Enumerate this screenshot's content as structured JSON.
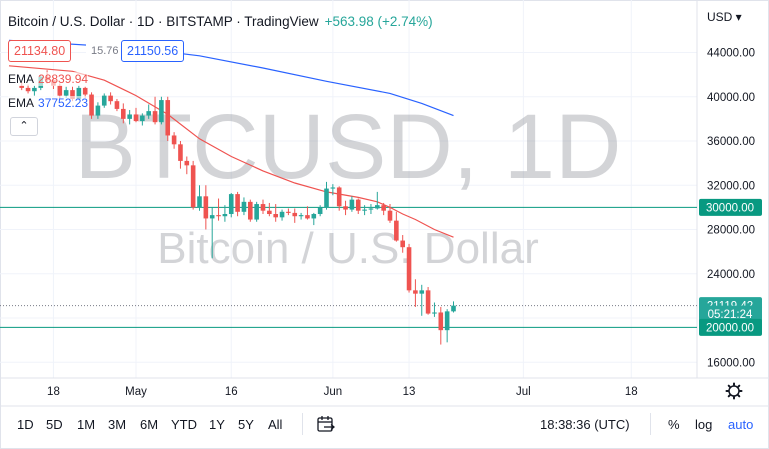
{
  "header": {
    "title": "Bitcoin / U.S. Dollar · 1D · BITSTAMP · TradingView",
    "change": "+563.98 (+2.74%)"
  },
  "legend": {
    "open_value": "21134.80",
    "volume_value": "15.76",
    "close_value": "21150.56",
    "ema1_label": "EMA",
    "ema1_value": "28839.94",
    "ema2_label": "EMA",
    "ema2_value": "37752.23",
    "collapse_glyph": "⌃"
  },
  "watermark": {
    "symbol": "BTCUSD, 1D",
    "name": "Bitcoin / U.S. Dollar"
  },
  "currency_menu": "USD ▾",
  "price_axis": {
    "ticks": [
      "44000.00",
      "40000.00",
      "36000.00",
      "32000.00",
      "28000.00",
      "24000.00",
      "20000.00",
      "16000.00"
    ],
    "tick_values": [
      44000,
      40000,
      36000,
      32000,
      28000,
      24000,
      20000,
      16000
    ],
    "labels": [
      {
        "text": "30000.00",
        "value": 30000,
        "color": "#089981"
      },
      {
        "text": "21119.42",
        "value": 21119.42,
        "color": "#26a69a"
      },
      {
        "text": "05:21:24",
        "value": 20350,
        "color": "#26a69a"
      },
      {
        "text": "20000.00",
        "value": 19150,
        "color": "#089981"
      }
    ]
  },
  "time_axis": {
    "ticks": [
      {
        "text": "18",
        "day": -13
      },
      {
        "text": "May",
        "day": 0
      },
      {
        "text": "16",
        "day": 15
      },
      {
        "text": "Jun",
        "day": 31
      },
      {
        "text": "13",
        "day": 43
      },
      {
        "text": "Jul",
        "day": 61
      },
      {
        "text": "18",
        "day": 78
      }
    ]
  },
  "colors": {
    "up": "#26a69a",
    "down": "#ef5350",
    "ema_fast": "#ef5350",
    "ema_slow": "#2962ff",
    "hline": "#089981",
    "grid": "#f0f3fa",
    "watermark": "rgba(120,123,134,0.35)"
  },
  "chart_data": {
    "type": "candlestick",
    "ylim": [
      14000,
      46500
    ],
    "x_unit": "days since 1 May",
    "horizontal_lines": [
      30000,
      20000
    ],
    "last_price": 21119.42,
    "candles": [
      {
        "d": -18,
        "o": 41000,
        "h": 41300,
        "l": 40600,
        "c": 40800
      },
      {
        "d": -17,
        "o": 40800,
        "h": 41100,
        "l": 40300,
        "c": 40500
      },
      {
        "d": -16,
        "o": 40500,
        "h": 41000,
        "l": 40100,
        "c": 40800
      },
      {
        "d": -15,
        "o": 40800,
        "h": 42000,
        "l": 40600,
        "c": 41800
      },
      {
        "d": -14,
        "o": 41800,
        "h": 42400,
        "l": 41200,
        "c": 41500
      },
      {
        "d": -13,
        "o": 41500,
        "h": 41800,
        "l": 40700,
        "c": 41000
      },
      {
        "d": -12,
        "o": 41000,
        "h": 41200,
        "l": 39800,
        "c": 40100
      },
      {
        "d": -11,
        "o": 40100,
        "h": 40900,
        "l": 39900,
        "c": 40600
      },
      {
        "d": -10,
        "o": 40600,
        "h": 40900,
        "l": 39600,
        "c": 39800
      },
      {
        "d": -9,
        "o": 39800,
        "h": 41000,
        "l": 39700,
        "c": 40800
      },
      {
        "d": -8,
        "o": 40800,
        "h": 40900,
        "l": 39900,
        "c": 40200
      },
      {
        "d": -7,
        "o": 40200,
        "h": 40400,
        "l": 38000,
        "c": 38300
      },
      {
        "d": -6,
        "o": 38300,
        "h": 39500,
        "l": 38000,
        "c": 39200
      },
      {
        "d": -5,
        "o": 39200,
        "h": 40300,
        "l": 39000,
        "c": 40100
      },
      {
        "d": -4,
        "o": 40100,
        "h": 40400,
        "l": 39300,
        "c": 39600
      },
      {
        "d": -3,
        "o": 39600,
        "h": 39800,
        "l": 38700,
        "c": 38900
      },
      {
        "d": -2,
        "o": 38900,
        "h": 39400,
        "l": 37600,
        "c": 38000
      },
      {
        "d": -1,
        "o": 38000,
        "h": 38800,
        "l": 37500,
        "c": 38400
      },
      {
        "d": 0,
        "o": 38400,
        "h": 39000,
        "l": 37700,
        "c": 37800
      },
      {
        "d": 1,
        "o": 37800,
        "h": 38500,
        "l": 37400,
        "c": 38300
      },
      {
        "d": 2,
        "o": 38300,
        "h": 39300,
        "l": 38000,
        "c": 38700
      },
      {
        "d": 3,
        "o": 38700,
        "h": 40000,
        "l": 37500,
        "c": 37700
      },
      {
        "d": 4,
        "o": 37700,
        "h": 40000,
        "l": 37500,
        "c": 39700
      },
      {
        "d": 5,
        "o": 39700,
        "h": 40000,
        "l": 36000,
        "c": 36500
      },
      {
        "d": 6,
        "o": 36500,
        "h": 36800,
        "l": 35300,
        "c": 35700
      },
      {
        "d": 7,
        "o": 35700,
        "h": 36000,
        "l": 33500,
        "c": 34200
      },
      {
        "d": 8,
        "o": 34200,
        "h": 34600,
        "l": 33000,
        "c": 33800
      },
      {
        "d": 9,
        "o": 33800,
        "h": 34200,
        "l": 29800,
        "c": 30000
      },
      {
        "d": 10,
        "o": 30000,
        "h": 32000,
        "l": 29700,
        "c": 31000
      },
      {
        "d": 11,
        "o": 31000,
        "h": 32000,
        "l": 28000,
        "c": 29000
      },
      {
        "d": 12,
        "o": 29000,
        "h": 30000,
        "l": 25400,
        "c": 29300
      },
      {
        "d": 13,
        "o": 29300,
        "h": 30800,
        "l": 28800,
        "c": 29200
      },
      {
        "d": 14,
        "o": 29200,
        "h": 30200,
        "l": 28700,
        "c": 29400
      },
      {
        "d": 15,
        "o": 29400,
        "h": 31300,
        "l": 29100,
        "c": 31200
      },
      {
        "d": 16,
        "o": 31200,
        "h": 31400,
        "l": 29200,
        "c": 29600
      },
      {
        "d": 17,
        "o": 29600,
        "h": 30900,
        "l": 29300,
        "c": 30500
      },
      {
        "d": 18,
        "o": 30500,
        "h": 30700,
        "l": 28700,
        "c": 28900
      },
      {
        "d": 19,
        "o": 28900,
        "h": 30500,
        "l": 28700,
        "c": 30300
      },
      {
        "d": 20,
        "o": 30300,
        "h": 30700,
        "l": 29400,
        "c": 29700
      },
      {
        "d": 21,
        "o": 29700,
        "h": 30400,
        "l": 29200,
        "c": 29400
      },
      {
        "d": 22,
        "o": 29400,
        "h": 30300,
        "l": 28700,
        "c": 29100
      },
      {
        "d": 23,
        "o": 29100,
        "h": 29800,
        "l": 28800,
        "c": 29600
      },
      {
        "d": 24,
        "o": 29600,
        "h": 29900,
        "l": 29300,
        "c": 29500
      },
      {
        "d": 25,
        "o": 29500,
        "h": 29900,
        "l": 28600,
        "c": 29200
      },
      {
        "d": 26,
        "o": 29200,
        "h": 29500,
        "l": 28900,
        "c": 29300
      },
      {
        "d": 27,
        "o": 29300,
        "h": 30100,
        "l": 28900,
        "c": 29000
      },
      {
        "d": 28,
        "o": 29000,
        "h": 29500,
        "l": 28400,
        "c": 29400
      },
      {
        "d": 29,
        "o": 29400,
        "h": 30200,
        "l": 29200,
        "c": 30000
      },
      {
        "d": 30,
        "o": 30000,
        "h": 32300,
        "l": 29800,
        "c": 31700
      },
      {
        "d": 31,
        "o": 31700,
        "h": 32100,
        "l": 31100,
        "c": 31800
      },
      {
        "d": 32,
        "o": 31800,
        "h": 31900,
        "l": 29700,
        "c": 30100
      },
      {
        "d": 33,
        "o": 30100,
        "h": 30600,
        "l": 29300,
        "c": 29800
      },
      {
        "d": 34,
        "o": 29800,
        "h": 31000,
        "l": 29600,
        "c": 30700
      },
      {
        "d": 35,
        "o": 30700,
        "h": 30800,
        "l": 29400,
        "c": 29700
      },
      {
        "d": 36,
        "o": 29700,
        "h": 30200,
        "l": 29300,
        "c": 29800
      },
      {
        "d": 37,
        "o": 29800,
        "h": 30300,
        "l": 29400,
        "c": 29900
      },
      {
        "d": 38,
        "o": 29900,
        "h": 31400,
        "l": 29800,
        "c": 30200
      },
      {
        "d": 39,
        "o": 30200,
        "h": 30400,
        "l": 29300,
        "c": 29700
      },
      {
        "d": 40,
        "o": 29700,
        "h": 30300,
        "l": 28600,
        "c": 28800
      },
      {
        "d": 41,
        "o": 28800,
        "h": 29600,
        "l": 26900,
        "c": 27000
      },
      {
        "d": 42,
        "o": 27000,
        "h": 27500,
        "l": 25900,
        "c": 26400
      },
      {
        "d": 43,
        "o": 26400,
        "h": 26700,
        "l": 22300,
        "c": 22500
      },
      {
        "d": 44,
        "o": 22500,
        "h": 23500,
        "l": 21000,
        "c": 22200
      },
      {
        "d": 45,
        "o": 22200,
        "h": 23000,
        "l": 20200,
        "c": 22500
      },
      {
        "d": 46,
        "o": 22500,
        "h": 22800,
        "l": 20300,
        "c": 20400
      },
      {
        "d": 47,
        "o": 20400,
        "h": 21400,
        "l": 20100,
        "c": 20500
      },
      {
        "d": 48,
        "o": 20500,
        "h": 21000,
        "l": 17600,
        "c": 18900
      },
      {
        "d": 49,
        "o": 18900,
        "h": 20800,
        "l": 17800,
        "c": 20600
      },
      {
        "d": 50,
        "o": 20600,
        "h": 21500,
        "l": 20500,
        "c": 21119
      }
    ],
    "ema_fast": [
      [
        -20,
        42800
      ],
      [
        -10,
        42300
      ],
      [
        -5,
        41500
      ],
      [
        0,
        40100
      ],
      [
        5,
        38400
      ],
      [
        10,
        36200
      ],
      [
        15,
        34600
      ],
      [
        20,
        33300
      ],
      [
        25,
        32200
      ],
      [
        30,
        31400
      ],
      [
        35,
        30900
      ],
      [
        38,
        30500
      ],
      [
        40,
        30000
      ],
      [
        42,
        29400
      ],
      [
        44,
        28900
      ],
      [
        47,
        28000
      ],
      [
        50,
        27300
      ]
    ],
    "ema_slow": [
      [
        -20,
        45100
      ],
      [
        0,
        44400
      ],
      [
        10,
        43700
      ],
      [
        20,
        42600
      ],
      [
        30,
        41400
      ],
      [
        40,
        40300
      ],
      [
        45,
        39400
      ],
      [
        50,
        38300
      ]
    ]
  },
  "toolbar": {
    "timeframes": [
      "1D",
      "5D",
      "1M",
      "3M",
      "6M",
      "YTD",
      "1Y",
      "5Y",
      "All"
    ],
    "clock": "18:38:36 (UTC)",
    "percent": "%",
    "log": "log",
    "auto": "auto"
  }
}
